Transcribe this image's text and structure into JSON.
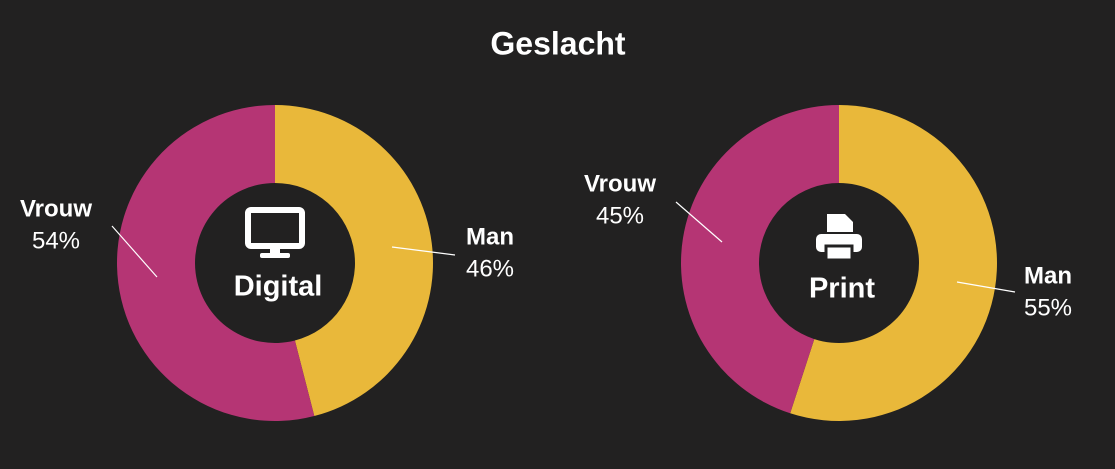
{
  "title": "Geslacht",
  "chart_data": [
    {
      "type": "donut",
      "center_label": "Digital",
      "categories": [
        "Man",
        "Vrouw"
      ],
      "values": [
        46,
        54
      ],
      "value_labels": [
        "46%",
        "54%"
      ],
      "colors": [
        "#e9b83a",
        "#b53574"
      ]
    },
    {
      "type": "donut",
      "center_label": "Print",
      "categories": [
        "Man",
        "Vrouw"
      ],
      "values": [
        55,
        45
      ],
      "value_labels": [
        "55%",
        "45%"
      ],
      "colors": [
        "#e9b83a",
        "#b53574"
      ]
    }
  ]
}
